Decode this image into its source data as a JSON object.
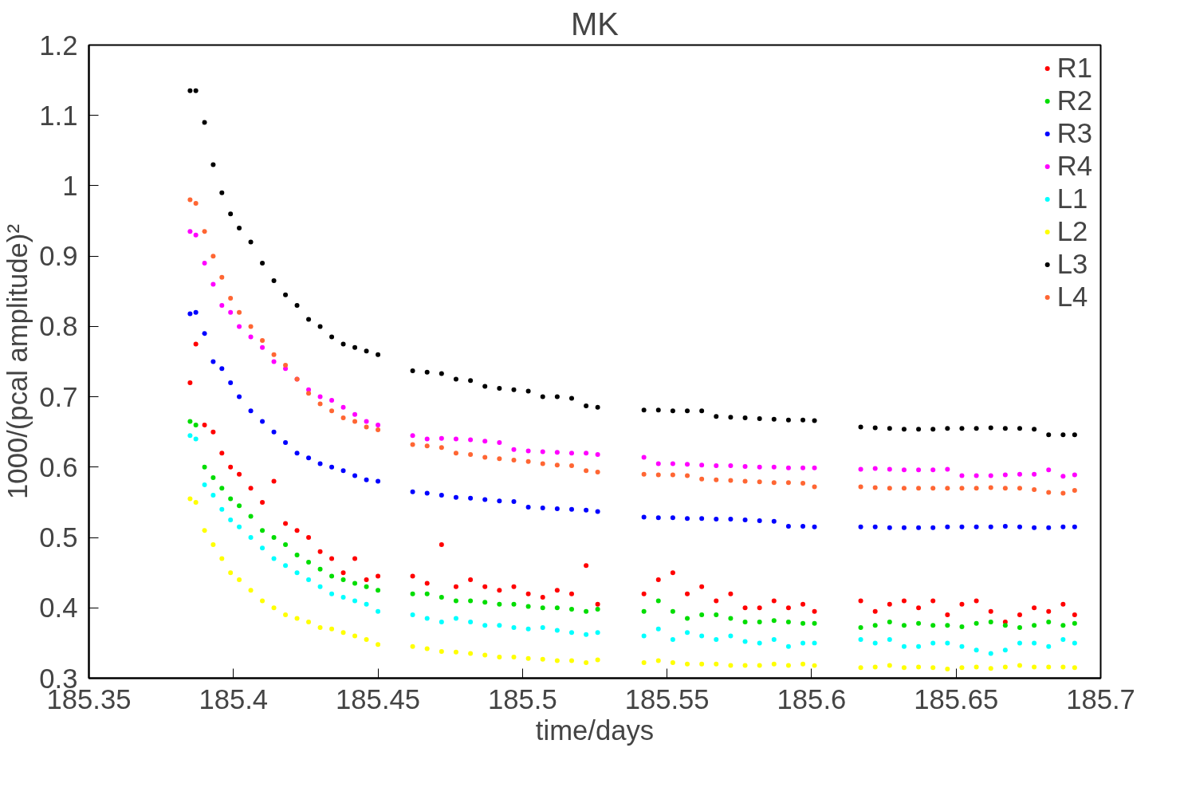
{
  "chart_data": {
    "type": "scatter",
    "title": "MK",
    "xlabel": "time/days",
    "ylabel": "1000/(pcal amplitude)²",
    "x": [
      185.385,
      185.387,
      185.39,
      185.393,
      185.396,
      185.399,
      185.402,
      185.406,
      185.41,
      185.414,
      185.418,
      185.422,
      185.426,
      185.43,
      185.434,
      185.438,
      185.442,
      185.446,
      185.45,
      185.462,
      185.467,
      185.472,
      185.477,
      185.482,
      185.487,
      185.492,
      185.497,
      185.502,
      185.507,
      185.512,
      185.517,
      185.522,
      185.526,
      185.542,
      185.547,
      185.552,
      185.557,
      185.562,
      185.567,
      185.572,
      185.577,
      185.582,
      185.587,
      185.592,
      185.597,
      185.601,
      185.617,
      185.622,
      185.627,
      185.632,
      185.637,
      185.642,
      185.647,
      185.652,
      185.657,
      185.662,
      185.667,
      185.672,
      185.677,
      185.682,
      185.687,
      185.691
    ],
    "series": [
      {
        "name": "R1",
        "color": "#ff0000",
        "values": [
          0.72,
          0.775,
          0.66,
          0.65,
          0.62,
          0.6,
          0.59,
          0.57,
          0.55,
          0.58,
          0.52,
          0.51,
          0.5,
          0.48,
          0.47,
          0.45,
          0.47,
          0.44,
          0.445,
          0.445,
          0.435,
          0.49,
          0.43,
          0.44,
          0.43,
          0.425,
          0.43,
          0.42,
          0.415,
          0.425,
          0.42,
          0.46,
          0.405,
          0.42,
          0.44,
          0.45,
          0.42,
          0.43,
          0.41,
          0.42,
          0.4,
          0.4,
          0.41,
          0.4,
          0.405,
          0.395,
          0.41,
          0.395,
          0.405,
          0.41,
          0.4,
          0.41,
          0.39,
          0.405,
          0.41,
          0.395,
          0.38,
          0.39,
          0.4,
          0.395,
          0.405,
          0.39
        ]
      },
      {
        "name": "R2",
        "color": "#00dd00",
        "values": [
          0.665,
          0.66,
          0.6,
          0.585,
          0.57,
          0.555,
          0.545,
          0.53,
          0.51,
          0.5,
          0.49,
          0.475,
          0.465,
          0.455,
          0.445,
          0.44,
          0.435,
          0.43,
          0.425,
          0.42,
          0.42,
          0.415,
          0.41,
          0.41,
          0.408,
          0.405,
          0.405,
          0.402,
          0.4,
          0.4,
          0.398,
          0.395,
          0.398,
          0.395,
          0.41,
          0.395,
          0.385,
          0.39,
          0.39,
          0.385,
          0.38,
          0.38,
          0.382,
          0.38,
          0.378,
          0.378,
          0.372,
          0.375,
          0.38,
          0.375,
          0.378,
          0.375,
          0.375,
          0.373,
          0.378,
          0.38,
          0.375,
          0.372,
          0.375,
          0.38,
          0.375,
          0.378
        ]
      },
      {
        "name": "R3",
        "color": "#0000ff",
        "values": [
          0.818,
          0.82,
          0.79,
          0.75,
          0.74,
          0.72,
          0.7,
          0.68,
          0.665,
          0.65,
          0.635,
          0.62,
          0.613,
          0.605,
          0.6,
          0.595,
          0.588,
          0.582,
          0.58,
          0.565,
          0.563,
          0.56,
          0.557,
          0.556,
          0.554,
          0.552,
          0.551,
          0.543,
          0.542,
          0.541,
          0.54,
          0.539,
          0.537,
          0.529,
          0.528,
          0.528,
          0.527,
          0.527,
          0.526,
          0.526,
          0.525,
          0.524,
          0.523,
          0.516,
          0.516,
          0.515,
          0.515,
          0.515,
          0.514,
          0.514,
          0.514,
          0.514,
          0.515,
          0.515,
          0.515,
          0.515,
          0.516,
          0.515,
          0.514,
          0.514,
          0.515,
          0.515
        ]
      },
      {
        "name": "R4",
        "color": "#ff00ff",
        "values": [
          0.935,
          0.93,
          0.89,
          0.86,
          0.83,
          0.82,
          0.8,
          0.785,
          0.77,
          0.75,
          0.74,
          0.725,
          0.71,
          0.7,
          0.695,
          0.685,
          0.675,
          0.665,
          0.66,
          0.645,
          0.64,
          0.641,
          0.64,
          0.639,
          0.637,
          0.635,
          0.625,
          0.623,
          0.622,
          0.621,
          0.62,
          0.62,
          0.618,
          0.614,
          0.605,
          0.605,
          0.604,
          0.603,
          0.602,
          0.602,
          0.601,
          0.6,
          0.6,
          0.599,
          0.599,
          0.599,
          0.597,
          0.598,
          0.597,
          0.596,
          0.596,
          0.596,
          0.597,
          0.588,
          0.588,
          0.588,
          0.589,
          0.59,
          0.59,
          0.596,
          0.587,
          0.589
        ]
      },
      {
        "name": "L1",
        "color": "#00ffff",
        "values": [
          0.645,
          0.64,
          0.575,
          0.56,
          0.54,
          0.525,
          0.515,
          0.5,
          0.485,
          0.47,
          0.46,
          0.45,
          0.44,
          0.43,
          0.42,
          0.415,
          0.41,
          0.405,
          0.395,
          0.39,
          0.385,
          0.38,
          0.385,
          0.38,
          0.375,
          0.375,
          0.372,
          0.37,
          0.372,
          0.368,
          0.365,
          0.362,
          0.365,
          0.36,
          0.37,
          0.355,
          0.365,
          0.36,
          0.355,
          0.36,
          0.352,
          0.35,
          0.355,
          0.345,
          0.35,
          0.35,
          0.355,
          0.35,
          0.355,
          0.345,
          0.345,
          0.35,
          0.35,
          0.345,
          0.34,
          0.335,
          0.34,
          0.35,
          0.35,
          0.345,
          0.355,
          0.35
        ]
      },
      {
        "name": "L2",
        "color": "#ffff00",
        "values": [
          0.555,
          0.55,
          0.51,
          0.49,
          0.47,
          0.45,
          0.44,
          0.425,
          0.41,
          0.4,
          0.39,
          0.385,
          0.38,
          0.372,
          0.37,
          0.365,
          0.36,
          0.355,
          0.348,
          0.345,
          0.342,
          0.338,
          0.337,
          0.335,
          0.333,
          0.33,
          0.33,
          0.328,
          0.327,
          0.325,
          0.325,
          0.322,
          0.326,
          0.322,
          0.325,
          0.322,
          0.32,
          0.32,
          0.32,
          0.318,
          0.318,
          0.318,
          0.32,
          0.318,
          0.32,
          0.318,
          0.315,
          0.316,
          0.318,
          0.315,
          0.316,
          0.315,
          0.313,
          0.315,
          0.316,
          0.314,
          0.316,
          0.318,
          0.316,
          0.316,
          0.316,
          0.315
        ]
      },
      {
        "name": "L3",
        "color": "#000000",
        "values": [
          1.135,
          1.135,
          1.09,
          1.03,
          0.99,
          0.96,
          0.94,
          0.92,
          0.89,
          0.865,
          0.845,
          0.83,
          0.81,
          0.8,
          0.785,
          0.775,
          0.77,
          0.765,
          0.76,
          0.737,
          0.735,
          0.733,
          0.725,
          0.723,
          0.715,
          0.712,
          0.71,
          0.708,
          0.7,
          0.7,
          0.698,
          0.687,
          0.685,
          0.681,
          0.681,
          0.68,
          0.68,
          0.68,
          0.672,
          0.671,
          0.67,
          0.669,
          0.668,
          0.667,
          0.667,
          0.666,
          0.657,
          0.656,
          0.655,
          0.654,
          0.654,
          0.654,
          0.655,
          0.655,
          0.655,
          0.656,
          0.655,
          0.655,
          0.654,
          0.646,
          0.646,
          0.646
        ]
      },
      {
        "name": "L4",
        "color": "#ff6633",
        "values": [
          0.98,
          0.975,
          0.935,
          0.9,
          0.87,
          0.84,
          0.82,
          0.8,
          0.78,
          0.76,
          0.745,
          0.725,
          0.705,
          0.69,
          0.68,
          0.67,
          0.665,
          0.657,
          0.653,
          0.632,
          0.63,
          0.628,
          0.62,
          0.618,
          0.614,
          0.612,
          0.61,
          0.608,
          0.605,
          0.603,
          0.602,
          0.595,
          0.593,
          0.59,
          0.589,
          0.589,
          0.588,
          0.583,
          0.582,
          0.581,
          0.58,
          0.579,
          0.578,
          0.578,
          0.577,
          0.572,
          0.572,
          0.571,
          0.57,
          0.57,
          0.57,
          0.57,
          0.57,
          0.57,
          0.57,
          0.571,
          0.57,
          0.57,
          0.568,
          0.564,
          0.563,
          0.567
        ]
      }
    ],
    "xlim": [
      185.35,
      185.7
    ],
    "ylim": [
      0.3,
      1.2
    ],
    "xticks": [
      185.35,
      185.4,
      185.45,
      185.5,
      185.55,
      185.6,
      185.65,
      185.7
    ],
    "yticks": [
      0.3,
      0.4,
      0.5,
      0.6,
      0.7,
      0.8,
      0.9,
      1,
      1.1,
      1.2
    ],
    "legend": "top right",
    "marker": "circle",
    "grid": false
  }
}
